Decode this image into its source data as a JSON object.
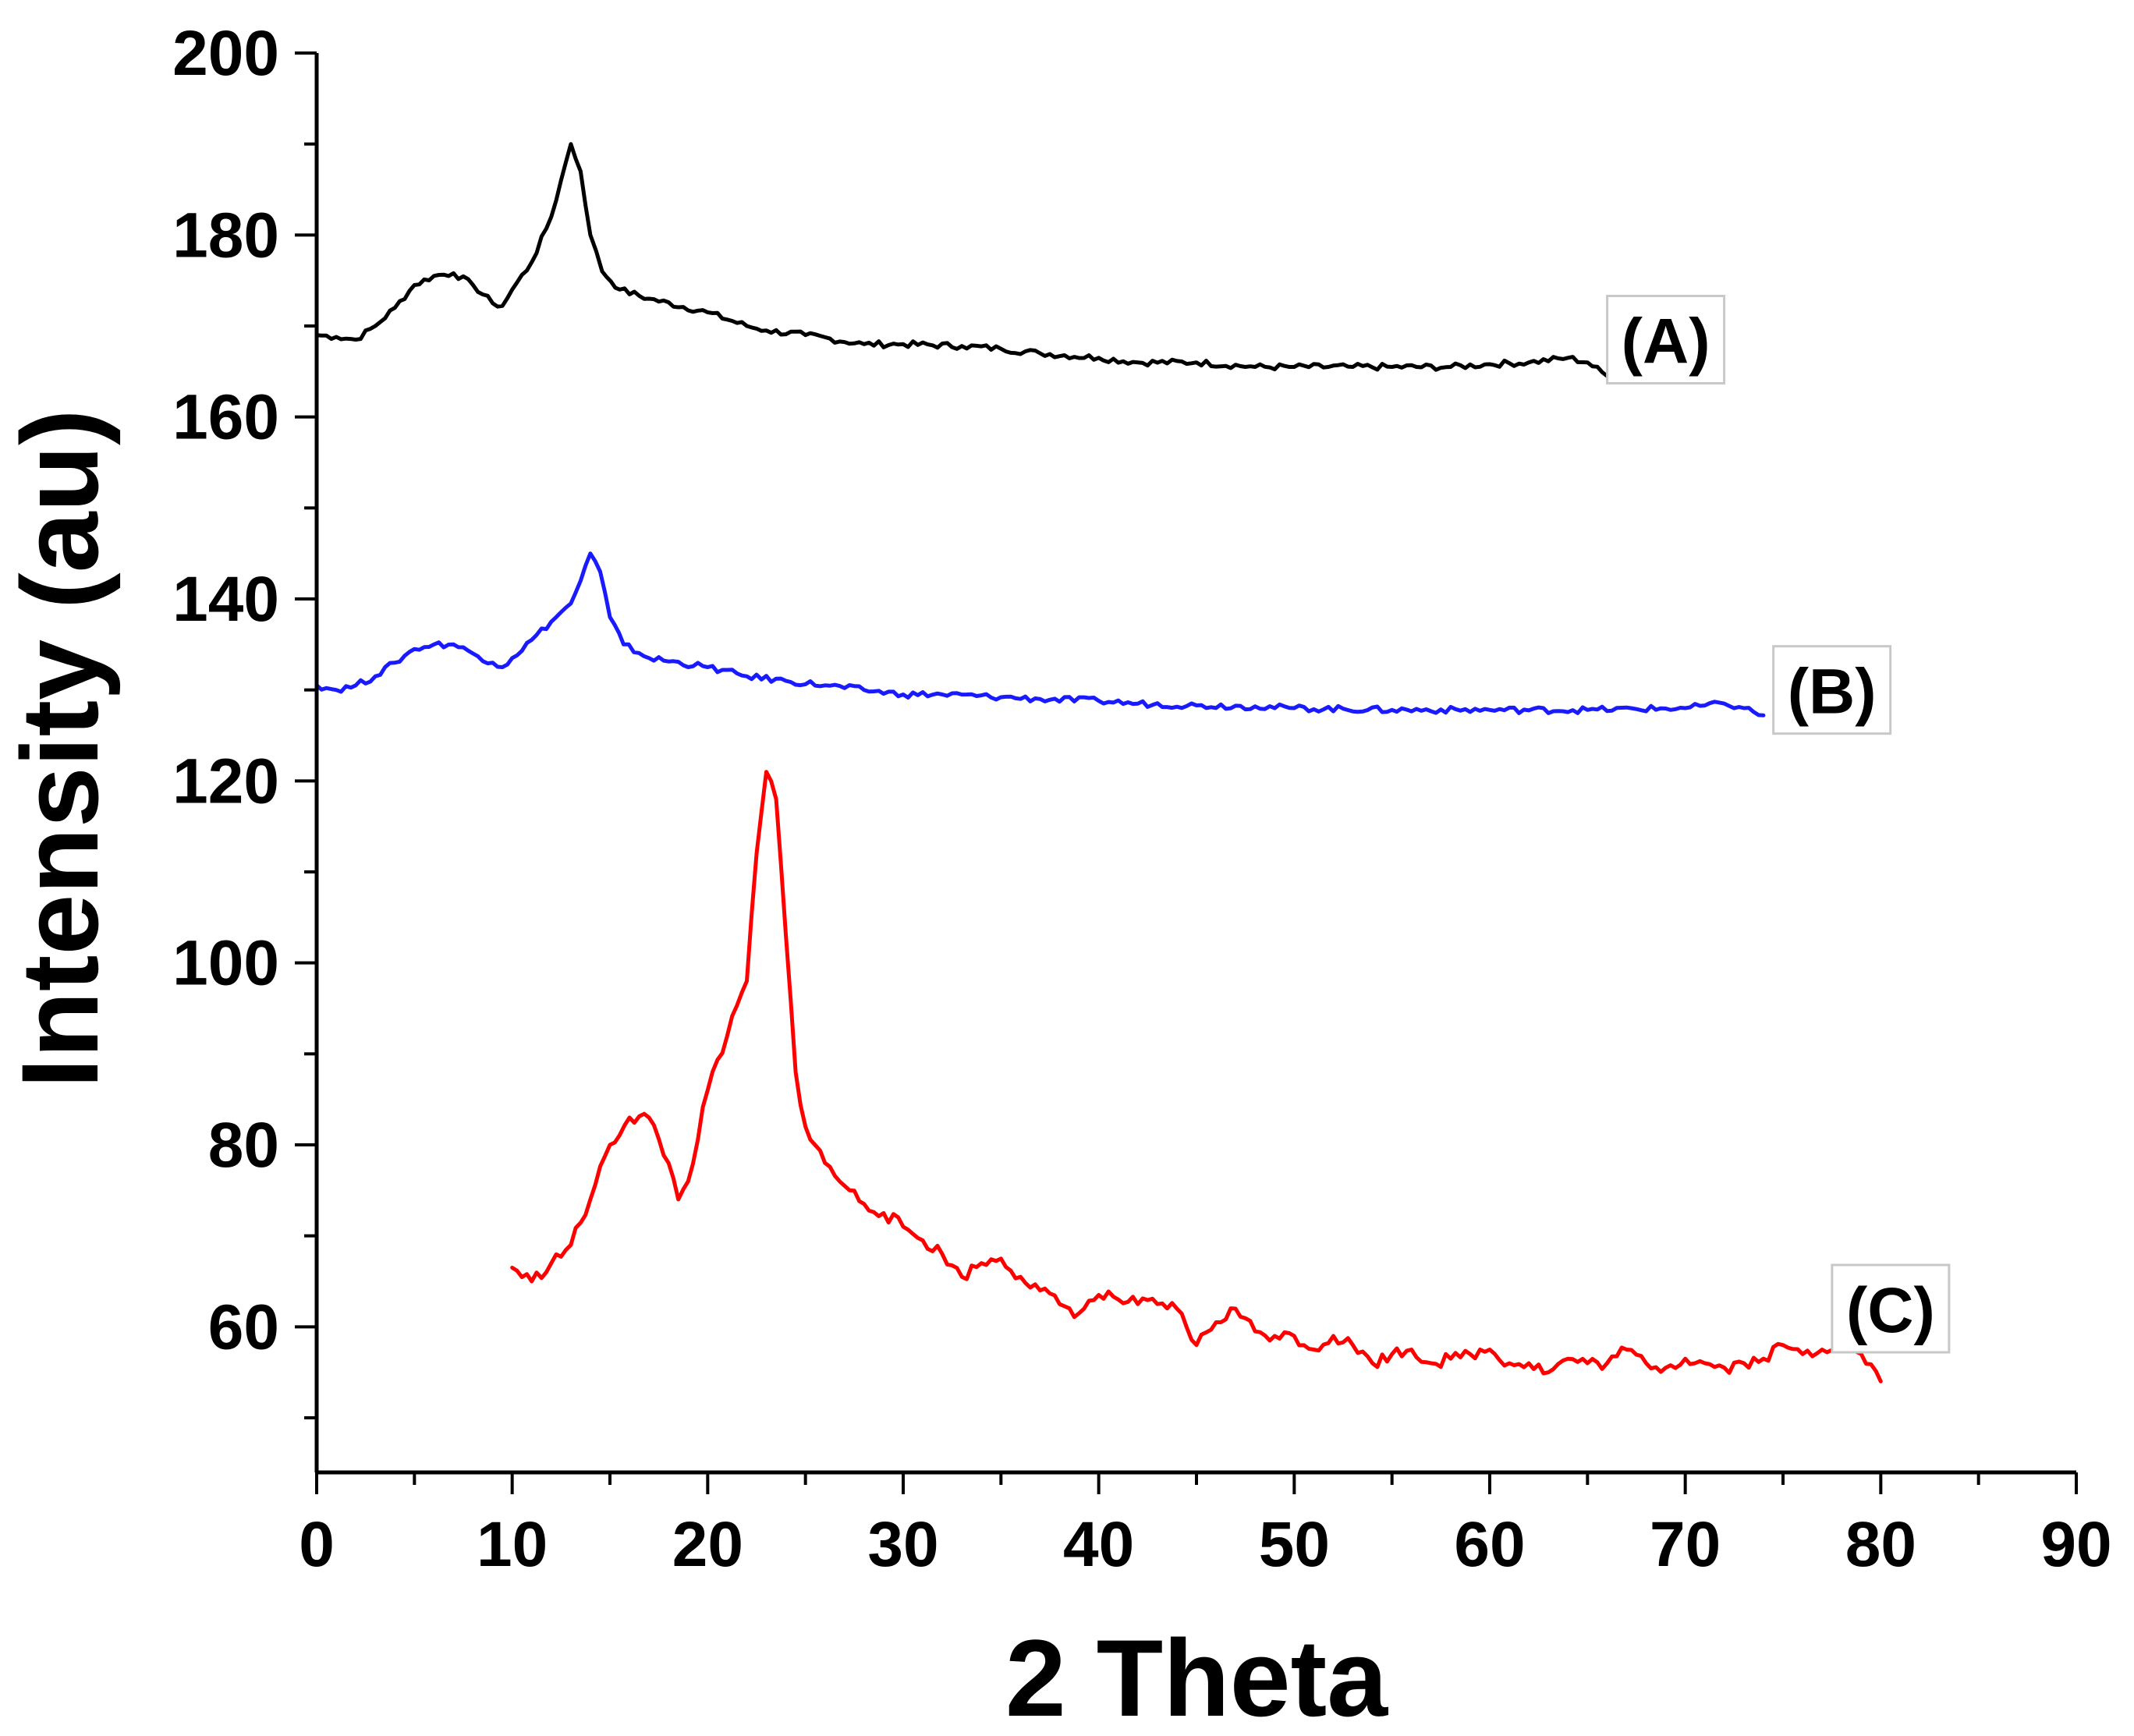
{
  "chart_data": {
    "type": "line",
    "title": "",
    "xlabel": "2 Theta",
    "ylabel": "Intensity (au)",
    "xlim": [
      0,
      90
    ],
    "ylim": [
      44,
      200
    ],
    "x_ticks": [
      0,
      10,
      20,
      30,
      40,
      50,
      60,
      70,
      80,
      90
    ],
    "y_ticks": [
      60,
      80,
      100,
      120,
      140,
      160,
      180,
      200
    ],
    "grid": false,
    "legend": "none",
    "series": [
      {
        "name": "(A)",
        "color": "#000000",
        "label_anchor": [
          69,
          168.5
        ],
        "points": [
          [
            0,
            169
          ],
          [
            1,
            168.8
          ],
          [
            2,
            168.5
          ],
          [
            3,
            170
          ],
          [
            4,
            172
          ],
          [
            5,
            174.5
          ],
          [
            6,
            175.5
          ],
          [
            7,
            175.8
          ],
          [
            8,
            174.5
          ],
          [
            9,
            172.5
          ],
          [
            9.5,
            172.2
          ],
          [
            10,
            174
          ],
          [
            11,
            177
          ],
          [
            12,
            182
          ],
          [
            12.5,
            186
          ],
          [
            13,
            190
          ],
          [
            13.5,
            187
          ],
          [
            14,
            180
          ],
          [
            14.6,
            176
          ],
          [
            15.5,
            174
          ],
          [
            17,
            173
          ],
          [
            20,
            171.5
          ],
          [
            22,
            170
          ],
          [
            23,
            169.5
          ],
          [
            25,
            169
          ],
          [
            28,
            168
          ],
          [
            30,
            168
          ],
          [
            33,
            167.8
          ],
          [
            35,
            167.5
          ],
          [
            37,
            167
          ],
          [
            40,
            166.5
          ],
          [
            42,
            166
          ],
          [
            45,
            166
          ],
          [
            48,
            165.5
          ],
          [
            50,
            165.5
          ],
          [
            53,
            165.5
          ],
          [
            55,
            165.5
          ],
          [
            58,
            165.5
          ],
          [
            60,
            165.8
          ],
          [
            62,
            166
          ],
          [
            64,
            166.5
          ],
          [
            65,
            166
          ],
          [
            66,
            164.5
          ]
        ]
      },
      {
        "name": "(B)",
        "color": "#1a1aff",
        "label_anchor": [
          77.5,
          130
        ],
        "points": [
          [
            0,
            130.5
          ],
          [
            1,
            130
          ],
          [
            2,
            130.5
          ],
          [
            3,
            131.5
          ],
          [
            4,
            133
          ],
          [
            5,
            134.5
          ],
          [
            6,
            135
          ],
          [
            7,
            135
          ],
          [
            8,
            134
          ],
          [
            9,
            133
          ],
          [
            9.5,
            132.5
          ],
          [
            10,
            133.5
          ],
          [
            11,
            135.5
          ],
          [
            12,
            137.5
          ],
          [
            13,
            139.5
          ],
          [
            13.5,
            142
          ],
          [
            14,
            145
          ],
          [
            14.5,
            143
          ],
          [
            15,
            138
          ],
          [
            15.7,
            135
          ],
          [
            17,
            133.5
          ],
          [
            20,
            132.5
          ],
          [
            22,
            131.5
          ],
          [
            24,
            131
          ],
          [
            26,
            130.5
          ],
          [
            28,
            130
          ],
          [
            30,
            129.5
          ],
          [
            32,
            129.5
          ],
          [
            35,
            129.2
          ],
          [
            37,
            129
          ],
          [
            40,
            128.8
          ],
          [
            42,
            128.5
          ],
          [
            45,
            128.3
          ],
          [
            48,
            128.2
          ],
          [
            50,
            128
          ],
          [
            55,
            127.8
          ],
          [
            60,
            127.8
          ],
          [
            65,
            127.8
          ],
          [
            70,
            128
          ],
          [
            72,
            128.5
          ],
          [
            73,
            128
          ],
          [
            74,
            127.2
          ]
        ]
      },
      {
        "name": "(C)",
        "color": "#ff0000",
        "label_anchor": [
          80.5,
          62
        ],
        "points": [
          [
            10,
            66.5
          ],
          [
            11,
            65
          ],
          [
            12,
            67
          ],
          [
            13,
            69
          ],
          [
            14,
            74
          ],
          [
            15,
            80
          ],
          [
            16,
            83
          ],
          [
            17,
            83
          ],
          [
            18,
            78
          ],
          [
            18.5,
            74
          ],
          [
            19,
            76
          ],
          [
            20,
            86
          ],
          [
            21,
            92
          ],
          [
            22,
            98
          ],
          [
            22.5,
            112
          ],
          [
            23,
            121
          ],
          [
            23.5,
            118
          ],
          [
            24,
            103
          ],
          [
            24.5,
            88
          ],
          [
            25,
            82
          ],
          [
            26,
            78
          ],
          [
            27,
            75.5
          ],
          [
            28,
            73.5
          ],
          [
            29,
            72.5
          ],
          [
            30,
            71
          ],
          [
            31,
            69.5
          ],
          [
            32,
            68
          ],
          [
            33,
            65.5
          ],
          [
            34,
            67
          ],
          [
            35,
            67.5
          ],
          [
            36,
            65.5
          ],
          [
            37,
            64
          ],
          [
            38,
            62.5
          ],
          [
            39,
            61.5
          ],
          [
            40,
            63.5
          ],
          [
            41,
            63
          ],
          [
            42,
            62.5
          ],
          [
            43,
            62.5
          ],
          [
            44,
            62
          ],
          [
            45,
            58
          ],
          [
            46,
            60.5
          ],
          [
            47,
            62
          ],
          [
            48,
            59.5
          ],
          [
            49,
            59
          ],
          [
            50,
            59
          ],
          [
            51,
            57.5
          ],
          [
            52,
            59
          ],
          [
            53,
            58
          ],
          [
            54,
            56
          ],
          [
            55,
            57
          ],
          [
            56,
            57.5
          ],
          [
            57,
            56
          ],
          [
            58,
            56.5
          ],
          [
            59,
            57
          ],
          [
            60,
            57.5
          ],
          [
            61,
            56
          ],
          [
            62,
            56
          ],
          [
            63,
            55
          ],
          [
            64,
            56.5
          ],
          [
            65,
            56
          ],
          [
            66,
            56
          ],
          [
            67,
            57.5
          ],
          [
            68,
            56
          ],
          [
            69,
            55.5
          ],
          [
            70,
            56.5
          ],
          [
            71,
            56
          ],
          [
            72,
            55.5
          ],
          [
            73,
            56
          ],
          [
            74,
            56.5
          ],
          [
            75,
            58
          ],
          [
            76,
            57
          ],
          [
            77,
            57.5
          ],
          [
            78,
            58.5
          ],
          [
            79,
            57
          ],
          [
            80,
            54
          ]
        ]
      }
    ]
  }
}
